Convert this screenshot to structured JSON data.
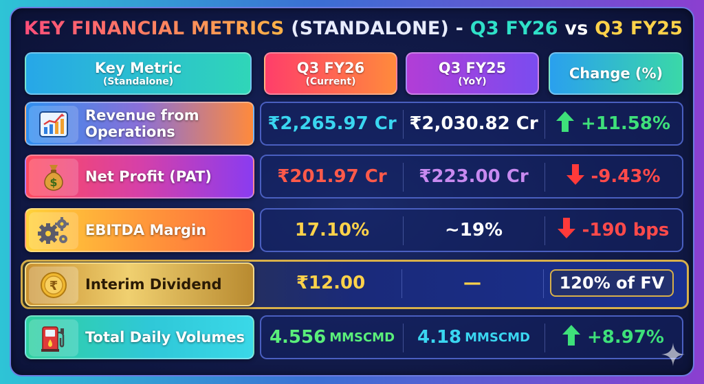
{
  "title": {
    "part1": "KEY FINANCIAL METRICS",
    "part2": "(STANDALONE) -",
    "part3": "Q3 FY26",
    "part4": "vs",
    "part5": "Q3 FY25"
  },
  "headers": [
    {
      "main": "Key Metric",
      "sub": "(Standalone)"
    },
    {
      "main": "Q3 FY26",
      "sub": "(Current)"
    },
    {
      "main": "Q3 FY25",
      "sub": "(YoY)"
    },
    {
      "main": "Change (%)",
      "sub": ""
    }
  ],
  "rows": [
    {
      "icon": "chart-icon",
      "label": "Revenue from Operations",
      "current": "₹2,265.97 Cr",
      "previous": "₹2,030.82 Cr",
      "change": "+11.58%",
      "direction": "up"
    },
    {
      "icon": "money-bag-icon",
      "label": "Net Profit (PAT)",
      "current": "₹201.97 Cr",
      "previous": "₹223.00 Cr",
      "change": "-9.43%",
      "direction": "down"
    },
    {
      "icon": "gears-icon",
      "label": "EBITDA Margin",
      "current": "17.10%",
      "previous": "~19%",
      "change": "-190 bps",
      "direction": "down"
    },
    {
      "icon": "rupee-coin-icon",
      "label": "Interim Dividend",
      "current": "₹12.00",
      "previous": "—",
      "change": "120% of FV",
      "direction": "none"
    },
    {
      "icon": "fuel-pump-icon",
      "label": "Total Daily Volumes",
      "current": "4.556",
      "current_unit": "MMSCMD",
      "previous": "4.18",
      "previous_unit": "MMSCMD",
      "change": "+8.97%",
      "direction": "up"
    }
  ],
  "colors": {
    "up": "#3ee07a",
    "down": "#ff4a4a",
    "cyan_value": "#3ad6f0",
    "red_value": "#ff5a4a",
    "purple_value": "#c88af0",
    "gold_value": "#ffd24a",
    "green_value": "#5aef7a"
  }
}
